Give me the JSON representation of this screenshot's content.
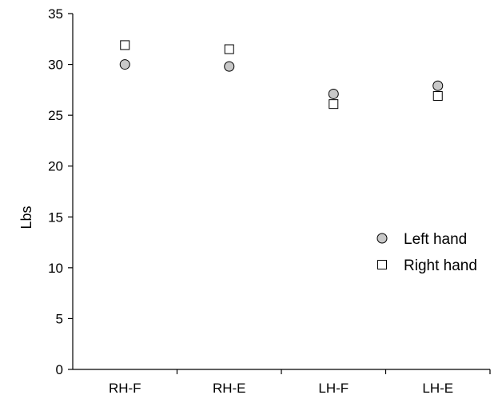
{
  "chart_data": {
    "type": "scatter",
    "categories": [
      "RH-F",
      "RH-E",
      "LH-F",
      "LH-E"
    ],
    "series": [
      {
        "name": "Left hand",
        "marker": "circle",
        "fill": "#c8c8c8",
        "stroke": "#000000",
        "values": [
          30.0,
          29.8,
          27.1,
          27.9
        ]
      },
      {
        "name": "Right hand",
        "marker": "square",
        "fill": "#ffffff",
        "stroke": "#000000",
        "values": [
          31.9,
          31.5,
          26.1,
          26.9
        ]
      }
    ],
    "title": "",
    "xlabel": "",
    "ylabel": "Lbs",
    "ylim": [
      0,
      35
    ],
    "yticks": [
      0,
      5,
      10,
      15,
      20,
      25,
      30,
      35
    ],
    "grid": false,
    "legend_position": "lower-right"
  }
}
